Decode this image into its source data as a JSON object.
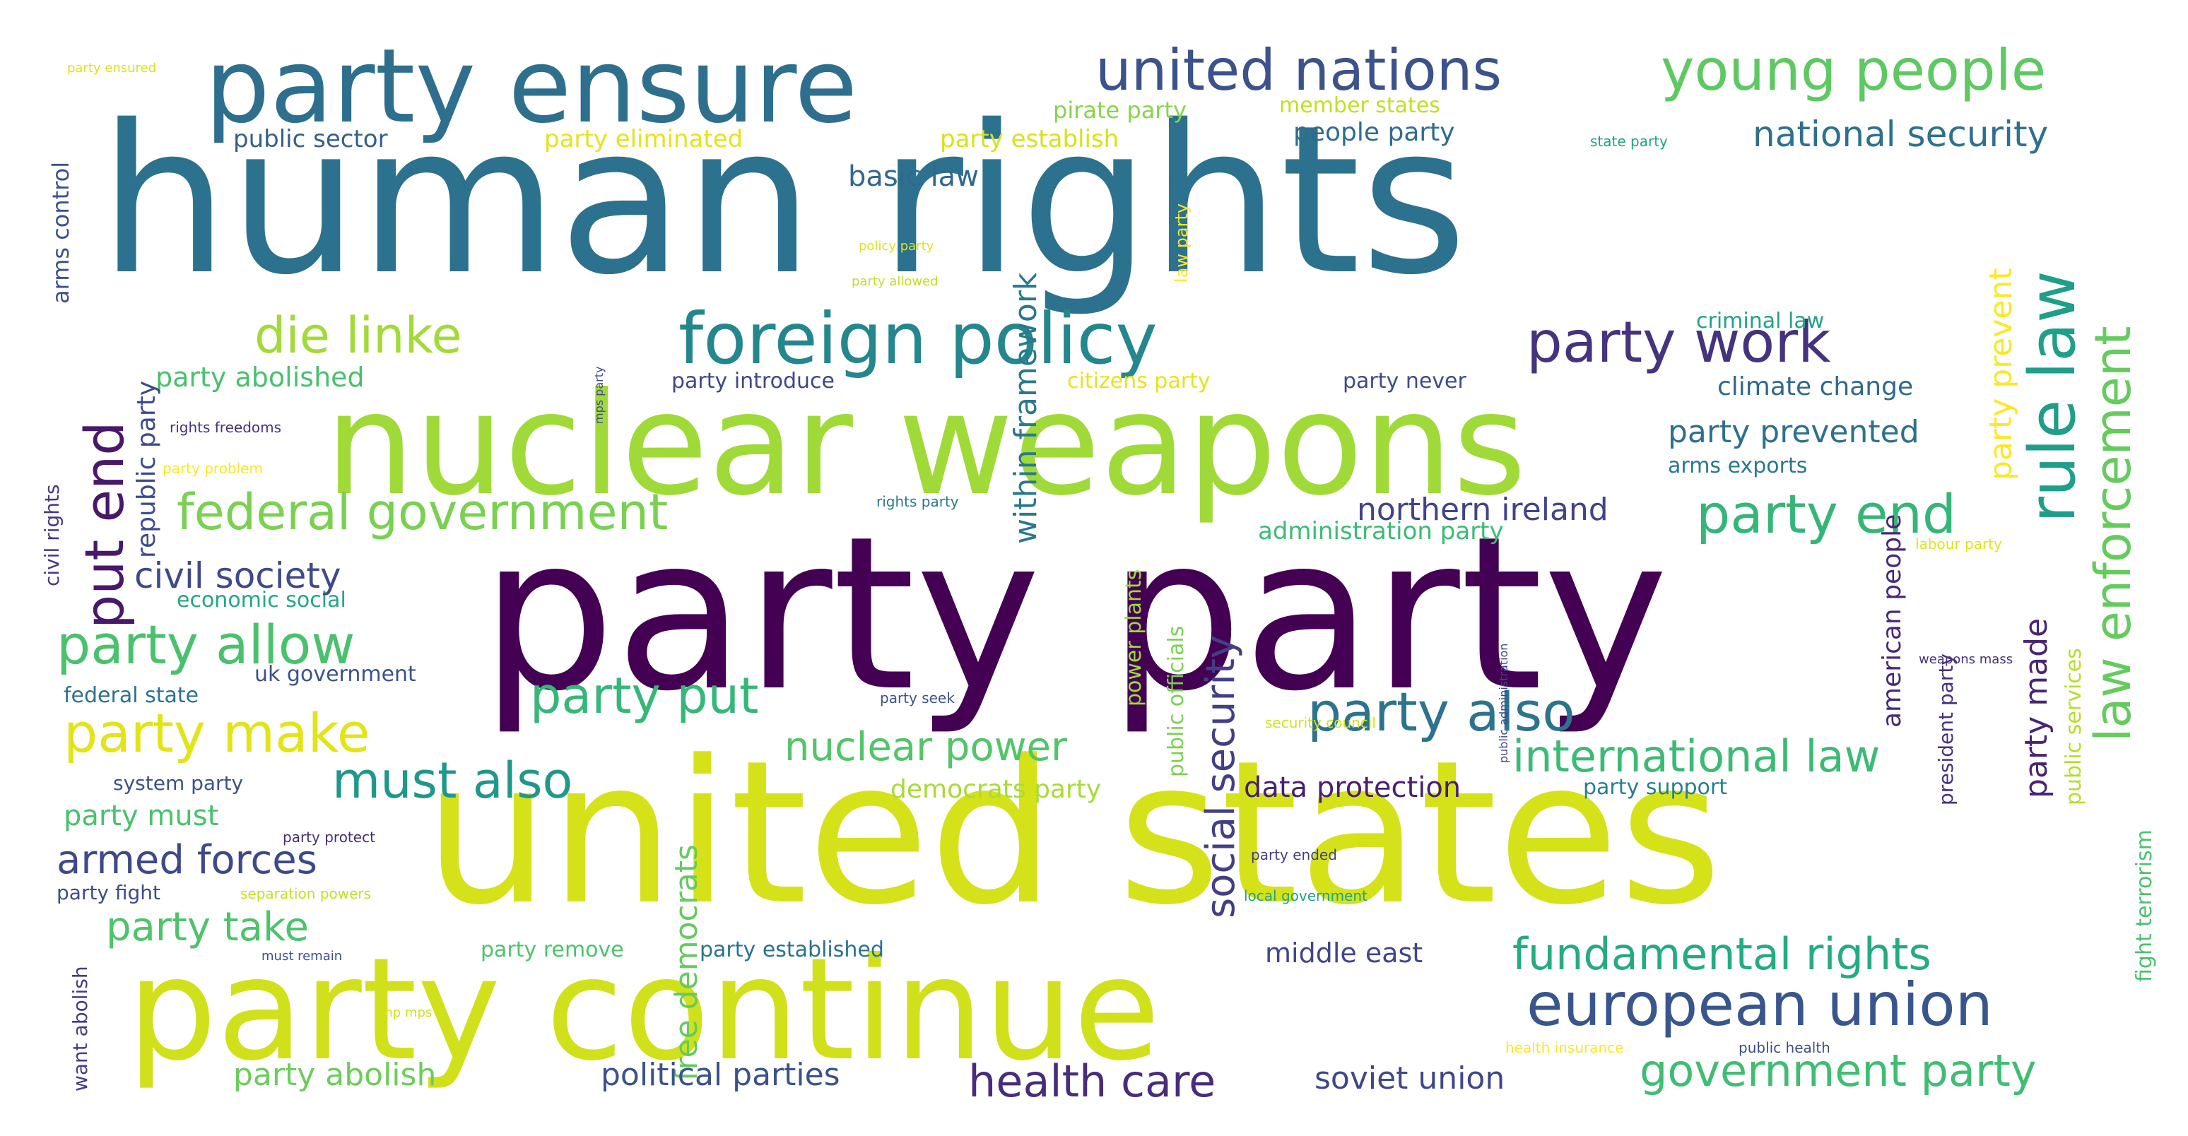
{
  "words": [
    {
      "text": "human rights",
      "color": "#2c728e"
    },
    {
      "text": "party party",
      "color": "#440154"
    },
    {
      "text": "united states",
      "color": "#d5e21a"
    },
    {
      "text": "nuclear weapons",
      "color": "#a0da39"
    },
    {
      "text": "party continue",
      "color": "#d0e11c"
    },
    {
      "text": "party ensure",
      "color": "#2e6f8e"
    },
    {
      "text": "foreign policy",
      "color": "#24878e"
    },
    {
      "text": "united nations",
      "color": "#3b528b"
    },
    {
      "text": "young people",
      "color": "#5ec962"
    },
    {
      "text": "european union",
      "color": "#39568c"
    },
    {
      "text": "party work",
      "color": "#46337e"
    },
    {
      "text": "rule law",
      "color": "#1f9e89"
    },
    {
      "text": "law enforcement",
      "color": "#65cb5e"
    },
    {
      "text": "federal government",
      "color": "#7ad151"
    },
    {
      "text": "party allow",
      "color": "#4ac16d"
    },
    {
      "text": "party make",
      "color": "#e2e418"
    },
    {
      "text": "party also",
      "color": "#2c738e"
    },
    {
      "text": "party end",
      "color": "#34b679"
    },
    {
      "text": "put end",
      "color": "#48186a"
    },
    {
      "text": "die linke",
      "color": "#a2da37"
    },
    {
      "text": "party put",
      "color": "#35b779"
    },
    {
      "text": "must also",
      "color": "#1f988b"
    },
    {
      "text": "nuclear power",
      "color": "#52c569"
    },
    {
      "text": "international law",
      "color": "#3bbb75"
    },
    {
      "text": "fundamental rights",
      "color": "#25ab82"
    },
    {
      "text": "government party",
      "color": "#40bd72"
    },
    {
      "text": "health care",
      "color": "#472d7b"
    },
    {
      "text": "social security",
      "color": "#423f85"
    },
    {
      "text": "armed forces",
      "color": "#3e4989"
    },
    {
      "text": "party take",
      "color": "#4ec36b"
    },
    {
      "text": "civil society",
      "color": "#3e4a89"
    },
    {
      "text": "national security",
      "color": "#2d718e"
    },
    {
      "text": "within framework",
      "color": "#2a788e"
    },
    {
      "text": "northern ireland",
      "color": "#414487"
    },
    {
      "text": "party prevented",
      "color": "#2d708e"
    },
    {
      "text": "party prevent",
      "color": "#fde725"
    },
    {
      "text": "party made",
      "color": "#482475"
    },
    {
      "text": "free democrats",
      "color": "#65cb5e"
    },
    {
      "text": "political parties",
      "color": "#3b528b"
    },
    {
      "text": "party abolish",
      "color": "#6ccd5a"
    },
    {
      "text": "soviet union",
      "color": "#3f4788"
    },
    {
      "text": "middle east",
      "color": "#404688"
    },
    {
      "text": "data protection",
      "color": "#481f70"
    },
    {
      "text": "party must",
      "color": "#4ac16d"
    },
    {
      "text": "democrats party",
      "color": "#a8db34"
    },
    {
      "text": "party abolished",
      "color": "#48c16e"
    },
    {
      "text": "basic law",
      "color": "#31688e"
    },
    {
      "text": "republic party",
      "color": "#3e4c8a"
    },
    {
      "text": "american people",
      "color": "#482878"
    },
    {
      "text": "climate change",
      "color": "#31688e"
    },
    {
      "text": "administration party",
      "color": "#3bbb75"
    },
    {
      "text": "public sector",
      "color": "#355f8d"
    },
    {
      "text": "party eliminated",
      "color": "#e5e419"
    },
    {
      "text": "party establish",
      "color": "#d8e219"
    },
    {
      "text": "pirate party",
      "color": "#86d549"
    },
    {
      "text": "member states",
      "color": "#c2df23"
    },
    {
      "text": "people party",
      "color": "#2f6c8e"
    },
    {
      "text": "arms control",
      "color": "#3b528b"
    },
    {
      "text": "civil rights",
      "color": "#453882"
    },
    {
      "text": "public officials",
      "color": "#7ad151"
    },
    {
      "text": "power plants",
      "color": "#9fda3a"
    },
    {
      "text": "arms exports",
      "color": "#2a788e"
    },
    {
      "text": "criminal law",
      "color": "#20a386"
    },
    {
      "text": "party introduce",
      "color": "#3f4788"
    },
    {
      "text": "citizens party",
      "color": "#e7e419"
    },
    {
      "text": "party never",
      "color": "#3e4c8a"
    },
    {
      "text": "public services",
      "color": "#b5de2b"
    },
    {
      "text": "fight terrorism",
      "color": "#4ac16d"
    },
    {
      "text": "president party",
      "color": "#46307e"
    },
    {
      "text": "economic social",
      "color": "#22a785"
    },
    {
      "text": "uk government",
      "color": "#3b528b"
    },
    {
      "text": "federal state",
      "color": "#2c728e"
    },
    {
      "text": "system party",
      "color": "#3b528b"
    },
    {
      "text": "party fight",
      "color": "#3e4c8a"
    },
    {
      "text": "want abolish",
      "color": "#433e85"
    },
    {
      "text": "party remove",
      "color": "#4ec36b"
    },
    {
      "text": "party established",
      "color": "#2c728e"
    },
    {
      "text": "party support",
      "color": "#27808e"
    },
    {
      "text": "party ensured",
      "color": "#dde318"
    },
    {
      "text": "state party",
      "color": "#1fa187"
    },
    {
      "text": "policy party",
      "color": "#dde318"
    },
    {
      "text": "party allowed",
      "color": "#bddf26"
    },
    {
      "text": "law party",
      "color": "#fde725"
    },
    {
      "text": "mps party",
      "color": "#3e4c8a"
    },
    {
      "text": "rights freedoms",
      "color": "#46327e"
    },
    {
      "text": "party problem",
      "color": "#fde725"
    },
    {
      "text": "rights party",
      "color": "#2a788e"
    },
    {
      "text": "labour party",
      "color": "#dde318"
    },
    {
      "text": "public administration",
      "color": "#3f4788"
    },
    {
      "text": "weapons mass",
      "color": "#46327e"
    },
    {
      "text": "party seek",
      "color": "#3b528b"
    },
    {
      "text": "security council",
      "color": "#d2e21b"
    },
    {
      "text": "party ended",
      "color": "#433e85"
    },
    {
      "text": "local government",
      "color": "#20a386"
    },
    {
      "text": "party protect",
      "color": "#472c7a"
    },
    {
      "text": "separation powers",
      "color": "#c2df23"
    },
    {
      "text": "must remain",
      "color": "#3b528b"
    },
    {
      "text": "snp mps",
      "color": "#d2e21b"
    },
    {
      "text": "health insurance",
      "color": "#fde725"
    },
    {
      "text": "public health",
      "color": "#3e4c8a"
    }
  ]
}
